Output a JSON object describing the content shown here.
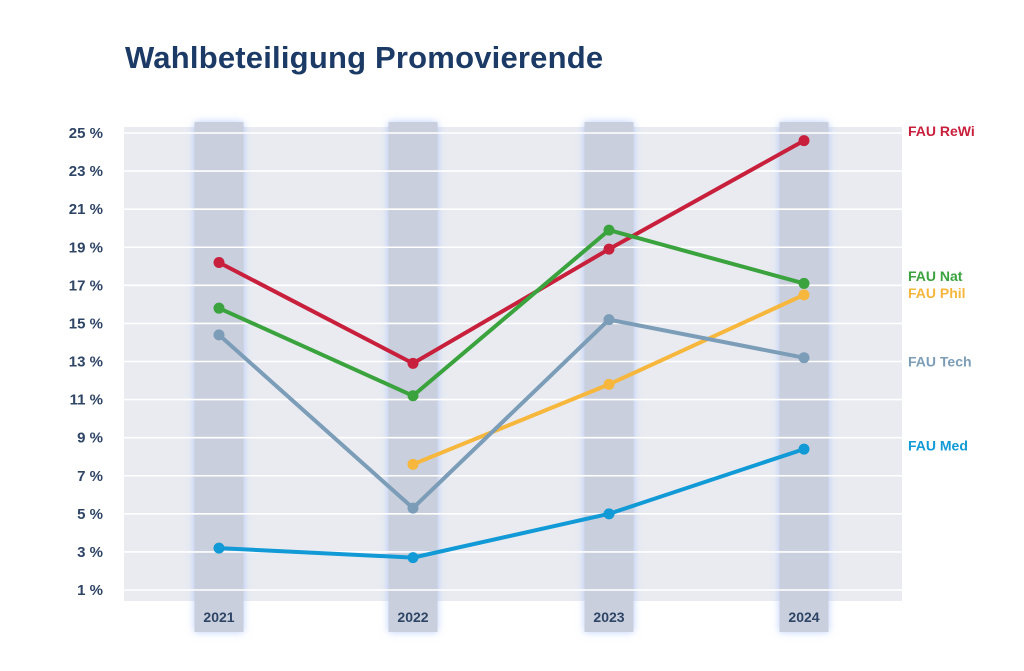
{
  "chart_data": {
    "type": "line",
    "title": "Wahlbeteiligung Promovierende",
    "categories": [
      "2021",
      "2022",
      "2023",
      "2024"
    ],
    "y_ticks": [
      1,
      3,
      5,
      7,
      9,
      11,
      13,
      15,
      17,
      19,
      21,
      23,
      25
    ],
    "y_tick_labels": [
      "1 %",
      "3 %",
      "5 %",
      "7 %",
      "9 %",
      "11 %",
      "13 %",
      "15 %",
      "17 %",
      "19 %",
      "21 %",
      "23 %",
      "25 %"
    ],
    "ylim": [
      1,
      25
    ],
    "xlabel": "",
    "ylabel": "",
    "grid": true,
    "legend_position": "right, labels at line ends",
    "series": [
      {
        "name": "FAU ReWi",
        "color": "#c8203c",
        "values": [
          18.2,
          12.9,
          18.9,
          24.6
        ]
      },
      {
        "name": "FAU Nat",
        "color": "#3aa33e",
        "values": [
          15.8,
          11.2,
          19.9,
          17.1
        ]
      },
      {
        "name": "FAU Phil",
        "color": "#f6b73c",
        "values": [
          null,
          7.6,
          11.8,
          16.5
        ]
      },
      {
        "name": "FAU Tech",
        "color": "#7c9db8",
        "values": [
          14.4,
          5.3,
          15.2,
          13.2
        ]
      },
      {
        "name": "FAU Med",
        "color": "#119ad6",
        "values": [
          3.2,
          2.7,
          5.0,
          8.4
        ]
      }
    ],
    "legend_anchor_values": [
      25.1,
      17.5,
      16.6,
      13.0,
      8.6
    ]
  }
}
